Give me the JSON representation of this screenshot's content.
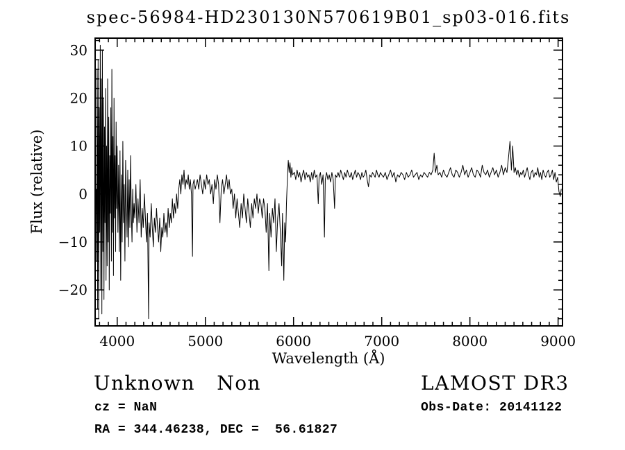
{
  "colors": {
    "background": "#ffffff",
    "foreground": "#000000"
  },
  "annotations": {
    "class_label": "Unknown   Non",
    "survey": "LAMOST DR3",
    "cz": "cz = NaN",
    "obs_date": "Obs-Date: 20141122",
    "coords": "RA = 344.46238, DEC =  56.61827"
  },
  "chart_data": {
    "type": "line",
    "title": "spec-56984-HD230130N570619B01_sp03-016.fits",
    "xlabel": "Wavelength (Å)",
    "ylabel": "Flux (relative)",
    "xlim": [
      3750,
      9050
    ],
    "ylim": [
      -27.5,
      32.5
    ],
    "xticks": [
      4000,
      5000,
      6000,
      7000,
      8000,
      9000
    ],
    "yticks": [
      -20,
      -10,
      0,
      10,
      20,
      30
    ],
    "x_minor_step": 100,
    "y_minor_step": 2,
    "grid": false,
    "legend": "none",
    "line_color": "#000000",
    "points": [
      [
        3760,
        1
      ],
      [
        3766,
        -14
      ],
      [
        3772,
        26
      ],
      [
        3778,
        -24
      ],
      [
        3784,
        28
      ],
      [
        3790,
        -26
      ],
      [
        3796,
        18
      ],
      [
        3802,
        -8
      ],
      [
        3808,
        31
      ],
      [
        3814,
        -20
      ],
      [
        3820,
        24
      ],
      [
        3826,
        -25
      ],
      [
        3832,
        30
      ],
      [
        3838,
        -12
      ],
      [
        3844,
        20
      ],
      [
        3850,
        -22
      ],
      [
        3856,
        14
      ],
      [
        3862,
        -6
      ],
      [
        3868,
        22
      ],
      [
        3874,
        -18
      ],
      [
        3880,
        10
      ],
      [
        3886,
        -15
      ],
      [
        3892,
        24
      ],
      [
        3898,
        -10
      ],
      [
        3904,
        16
      ],
      [
        3910,
        -20
      ],
      [
        3916,
        8
      ],
      [
        3922,
        -4
      ],
      [
        3928,
        18
      ],
      [
        3934,
        -14
      ],
      [
        3940,
        26
      ],
      [
        3946,
        -8
      ],
      [
        3952,
        12
      ],
      [
        3958,
        -17
      ],
      [
        3964,
        20
      ],
      [
        3970,
        -5
      ],
      [
        3976,
        8
      ],
      [
        3982,
        -12
      ],
      [
        3988,
        15
      ],
      [
        3994,
        -3
      ],
      [
        4000,
        10
      ],
      [
        4008,
        -8
      ],
      [
        4016,
        6
      ],
      [
        4024,
        -12
      ],
      [
        4032,
        9
      ],
      [
        4040,
        -18
      ],
      [
        4048,
        4
      ],
      [
        4056,
        -10
      ],
      [
        4064,
        11
      ],
      [
        4072,
        -6
      ],
      [
        4080,
        2
      ],
      [
        4088,
        -14
      ],
      [
        4096,
        7
      ],
      [
        4104,
        -2
      ],
      [
        4112,
        -9
      ],
      [
        4120,
        5
      ],
      [
        4128,
        -11
      ],
      [
        4136,
        3
      ],
      [
        4144,
        -7
      ],
      [
        4152,
        8
      ],
      [
        4160,
        -4
      ],
      [
        4168,
        -10
      ],
      [
        4176,
        1
      ],
      [
        4184,
        -6
      ],
      [
        4192,
        -2
      ],
      [
        4200,
        -5
      ],
      [
        4212,
        2
      ],
      [
        4224,
        -8
      ],
      [
        4236,
        -1
      ],
      [
        4248,
        -6
      ],
      [
        4260,
        3
      ],
      [
        4272,
        -9
      ],
      [
        4284,
        -3
      ],
      [
        4296,
        -7
      ],
      [
        4308,
        0
      ],
      [
        4320,
        -5
      ],
      [
        4332,
        -10
      ],
      [
        4344,
        -4
      ],
      [
        4356,
        -26
      ],
      [
        4362,
        -6
      ],
      [
        4374,
        -9
      ],
      [
        4386,
        -2
      ],
      [
        4398,
        -7
      ],
      [
        4410,
        -11
      ],
      [
        4422,
        -5
      ],
      [
        4434,
        -8
      ],
      [
        4446,
        -3
      ],
      [
        4458,
        -7
      ],
      [
        4470,
        -10
      ],
      [
        4482,
        -5
      ],
      [
        4494,
        -12
      ],
      [
        4506,
        -7
      ],
      [
        4518,
        -9
      ],
      [
        4530,
        -4
      ],
      [
        4542,
        -8
      ],
      [
        4554,
        -6
      ],
      [
        4566,
        -9
      ],
      [
        4578,
        -3
      ],
      [
        4590,
        -7
      ],
      [
        4602,
        -4
      ],
      [
        4614,
        -6
      ],
      [
        4626,
        -1
      ],
      [
        4638,
        -5
      ],
      [
        4650,
        -2
      ],
      [
        4662,
        -4
      ],
      [
        4674,
        0
      ],
      [
        4686,
        -3
      ],
      [
        4698,
        1
      ],
      [
        4710,
        3
      ],
      [
        4722,
        0
      ],
      [
        4734,
        4
      ],
      [
        4746,
        2
      ],
      [
        4758,
        5
      ],
      [
        4770,
        1
      ],
      [
        4782,
        3
      ],
      [
        4794,
        2
      ],
      [
        4806,
        4
      ],
      [
        4818,
        1
      ],
      [
        4830,
        3
      ],
      [
        4842,
        0
      ],
      [
        4854,
        -13
      ],
      [
        4860,
        2
      ],
      [
        4872,
        3
      ],
      [
        4884,
        1
      ],
      [
        4896,
        2
      ],
      [
        4910,
        3
      ],
      [
        4925,
        1
      ],
      [
        4940,
        4
      ],
      [
        4955,
        2
      ],
      [
        4970,
        0
      ],
      [
        4985,
        3
      ],
      [
        5000,
        1
      ],
      [
        5015,
        4
      ],
      [
        5030,
        2
      ],
      [
        5045,
        3
      ],
      [
        5060,
        0
      ],
      [
        5075,
        2
      ],
      [
        5090,
        -2
      ],
      [
        5105,
        3
      ],
      [
        5120,
        1
      ],
      [
        5135,
        4
      ],
      [
        5150,
        2
      ],
      [
        5165,
        -6
      ],
      [
        5180,
        1
      ],
      [
        5195,
        3
      ],
      [
        5210,
        0
      ],
      [
        5225,
        2
      ],
      [
        5240,
        4
      ],
      [
        5255,
        1
      ],
      [
        5270,
        3
      ],
      [
        5285,
        0
      ],
      [
        5300,
        1
      ],
      [
        5315,
        -3
      ],
      [
        5330,
        0
      ],
      [
        5345,
        -5
      ],
      [
        5360,
        -1
      ],
      [
        5375,
        -4
      ],
      [
        5390,
        -7
      ],
      [
        5405,
        -2
      ],
      [
        5420,
        -5
      ],
      [
        5435,
        0
      ],
      [
        5450,
        -3
      ],
      [
        5465,
        -6
      ],
      [
        5480,
        -1
      ],
      [
        5495,
        -4
      ],
      [
        5510,
        -7
      ],
      [
        5525,
        -2
      ],
      [
        5540,
        -5
      ],
      [
        5555,
        -1
      ],
      [
        5570,
        -3
      ],
      [
        5585,
        0
      ],
      [
        5600,
        -4
      ],
      [
        5615,
        -1
      ],
      [
        5630,
        -2
      ],
      [
        5645,
        -5
      ],
      [
        5660,
        -1
      ],
      [
        5675,
        -3
      ],
      [
        5690,
        -8
      ],
      [
        5705,
        -2
      ],
      [
        5720,
        -16
      ],
      [
        5730,
        -4
      ],
      [
        5745,
        -9
      ],
      [
        5760,
        -3
      ],
      [
        5775,
        -6
      ],
      [
        5790,
        -1
      ],
      [
        5805,
        -12
      ],
      [
        5820,
        -5
      ],
      [
        5835,
        -2
      ],
      [
        5850,
        -8
      ],
      [
        5865,
        -15
      ],
      [
        5875,
        -4
      ],
      [
        5890,
        -18
      ],
      [
        5900,
        -6
      ],
      [
        5910,
        -10
      ],
      [
        5920,
        -2
      ],
      [
        5930,
        3
      ],
      [
        5940,
        7
      ],
      [
        5950,
        4.5
      ],
      [
        5960,
        6.5
      ],
      [
        5970,
        3.5
      ],
      [
        5980,
        5.5
      ],
      [
        5990,
        4
      ],
      [
        6010,
        4.5
      ],
      [
        6025,
        3
      ],
      [
        6040,
        5
      ],
      [
        6055,
        3.5
      ],
      [
        6070,
        4.5
      ],
      [
        6085,
        2.5
      ],
      [
        6100,
        4
      ],
      [
        6115,
        5
      ],
      [
        6130,
        3
      ],
      [
        6145,
        4.5
      ],
      [
        6160,
        3.5
      ],
      [
        6175,
        4
      ],
      [
        6190,
        2.5
      ],
      [
        6205,
        4.5
      ],
      [
        6220,
        3
      ],
      [
        6235,
        5
      ],
      [
        6250,
        3.5
      ],
      [
        6265,
        4
      ],
      [
        6280,
        -2
      ],
      [
        6290,
        3.5
      ],
      [
        6305,
        4.5
      ],
      [
        6320,
        2
      ],
      [
        6335,
        4
      ],
      [
        6350,
        -9
      ],
      [
        6360,
        3
      ],
      [
        6375,
        4.5
      ],
      [
        6390,
        3
      ],
      [
        6405,
        4
      ],
      [
        6420,
        2.5
      ],
      [
        6435,
        4.5
      ],
      [
        6450,
        3
      ],
      [
        6465,
        -3
      ],
      [
        6475,
        4
      ],
      [
        6490,
        3.5
      ],
      [
        6505,
        4.5
      ],
      [
        6520,
        3.5
      ],
      [
        6535,
        5
      ],
      [
        6550,
        4
      ],
      [
        6565,
        3
      ],
      [
        6580,
        4.5
      ],
      [
        6595,
        3.5
      ],
      [
        6610,
        5
      ],
      [
        6625,
        4
      ],
      [
        6640,
        3.5
      ],
      [
        6655,
        4.5
      ],
      [
        6670,
        3
      ],
      [
        6685,
        4
      ],
      [
        6700,
        5
      ],
      [
        6715,
        3.5
      ],
      [
        6730,
        4.5
      ],
      [
        6745,
        4
      ],
      [
        6760,
        3
      ],
      [
        6775,
        4.5
      ],
      [
        6790,
        3.5
      ],
      [
        6805,
        4
      ],
      [
        6820,
        5
      ],
      [
        6835,
        3
      ],
      [
        6850,
        1.5
      ],
      [
        6865,
        4
      ],
      [
        6880,
        3.5
      ],
      [
        6895,
        4.5
      ],
      [
        6910,
        4
      ],
      [
        6925,
        3.5
      ],
      [
        6940,
        5
      ],
      [
        6955,
        4
      ],
      [
        6970,
        3.5
      ],
      [
        6985,
        4.5
      ],
      [
        7000,
        4
      ],
      [
        7020,
        3.5
      ],
      [
        7040,
        4.5
      ],
      [
        7060,
        3
      ],
      [
        7080,
        4
      ],
      [
        7100,
        5
      ],
      [
        7120,
        3.5
      ],
      [
        7140,
        4.5
      ],
      [
        7160,
        2.5
      ],
      [
        7180,
        4
      ],
      [
        7200,
        3.5
      ],
      [
        7220,
        4.5
      ],
      [
        7240,
        4
      ],
      [
        7260,
        3
      ],
      [
        7280,
        4.5
      ],
      [
        7300,
        3.5
      ],
      [
        7320,
        4
      ],
      [
        7340,
        5
      ],
      [
        7360,
        3.5
      ],
      [
        7380,
        4
      ],
      [
        7400,
        4.5
      ],
      [
        7420,
        3
      ],
      [
        7440,
        4
      ],
      [
        7460,
        3.5
      ],
      [
        7480,
        4.5
      ],
      [
        7500,
        4
      ],
      [
        7520,
        3.5
      ],
      [
        7540,
        4.5
      ],
      [
        7560,
        4
      ],
      [
        7580,
        5
      ],
      [
        7595,
        8.5
      ],
      [
        7610,
        4.5
      ],
      [
        7625,
        6
      ],
      [
        7640,
        4
      ],
      [
        7660,
        4.5
      ],
      [
        7680,
        3.5
      ],
      [
        7700,
        5
      ],
      [
        7720,
        4
      ],
      [
        7740,
        3.5
      ],
      [
        7760,
        4.5
      ],
      [
        7780,
        5.5
      ],
      [
        7800,
        4
      ],
      [
        7820,
        3.5
      ],
      [
        7840,
        5
      ],
      [
        7860,
        4.5
      ],
      [
        7880,
        3.5
      ],
      [
        7900,
        4.5
      ],
      [
        7920,
        6
      ],
      [
        7940,
        4
      ],
      [
        7960,
        5
      ],
      [
        7980,
        3.5
      ],
      [
        8000,
        4.5
      ],
      [
        8020,
        5.5
      ],
      [
        8040,
        4
      ],
      [
        8060,
        3.5
      ],
      [
        8080,
        5
      ],
      [
        8100,
        4.5
      ],
      [
        8120,
        3.5
      ],
      [
        8140,
        6
      ],
      [
        8160,
        4.5
      ],
      [
        8180,
        4
      ],
      [
        8200,
        5
      ],
      [
        8220,
        3.5
      ],
      [
        8240,
        4.5
      ],
      [
        8260,
        5.5
      ],
      [
        8280,
        4
      ],
      [
        8300,
        5
      ],
      [
        8320,
        3.5
      ],
      [
        8340,
        4.5
      ],
      [
        8360,
        6
      ],
      [
        8380,
        4
      ],
      [
        8400,
        5.5
      ],
      [
        8420,
        4.5
      ],
      [
        8440,
        8
      ],
      [
        8455,
        11
      ],
      [
        8470,
        5
      ],
      [
        8485,
        10
      ],
      [
        8500,
        4.5
      ],
      [
        8515,
        5.5
      ],
      [
        8530,
        4
      ],
      [
        8545,
        5
      ],
      [
        8560,
        3.5
      ],
      [
        8575,
        4.5
      ],
      [
        8590,
        4
      ],
      [
        8605,
        5
      ],
      [
        8620,
        3.5
      ],
      [
        8635,
        4.5
      ],
      [
        8650,
        5.5
      ],
      [
        8665,
        4
      ],
      [
        8680,
        3
      ],
      [
        8695,
        4.5
      ],
      [
        8710,
        5
      ],
      [
        8725,
        3.5
      ],
      [
        8740,
        4.5
      ],
      [
        8755,
        4
      ],
      [
        8770,
        5.5
      ],
      [
        8785,
        3.5
      ],
      [
        8800,
        4.5
      ],
      [
        8815,
        3
      ],
      [
        8830,
        5
      ],
      [
        8845,
        4
      ],
      [
        8860,
        3.5
      ],
      [
        8875,
        4.5
      ],
      [
        8890,
        5
      ],
      [
        8905,
        3.5
      ],
      [
        8920,
        4
      ],
      [
        8935,
        5
      ],
      [
        8950,
        3
      ],
      [
        8965,
        4.5
      ],
      [
        8980,
        2.5
      ],
      [
        8995,
        3.5
      ],
      [
        9010,
        0.5
      ],
      [
        9025,
        -0.5
      ],
      [
        9035,
        1
      ]
    ]
  }
}
